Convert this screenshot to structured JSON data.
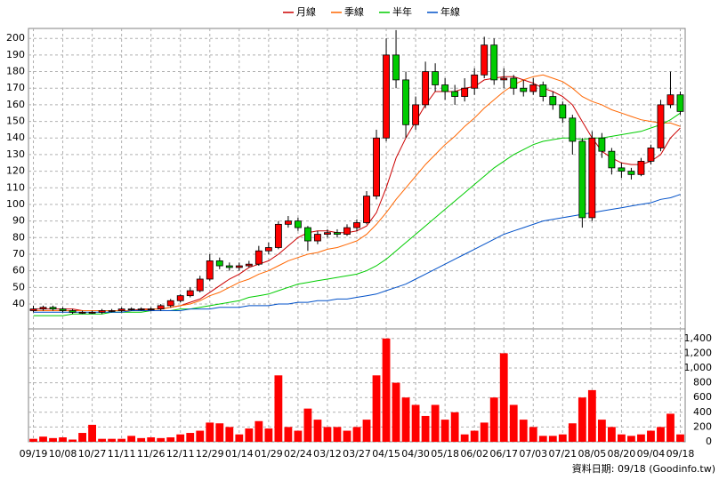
{
  "chart_data": {
    "type": "candlestick",
    "categories": [
      "09/19",
      null,
      null,
      "10/08",
      null,
      null,
      "10/27",
      null,
      null,
      "11/11",
      null,
      null,
      "11/26",
      null,
      null,
      "12/11",
      null,
      null,
      "12/29",
      null,
      null,
      "01/14",
      null,
      null,
      "01/29",
      null,
      null,
      "02/24",
      null,
      null,
      "03/12",
      null,
      null,
      "03/27",
      null,
      null,
      "04/15",
      null,
      null,
      "04/30",
      null,
      null,
      "05/18",
      null,
      null,
      "06/02",
      null,
      null,
      "06/17",
      null,
      null,
      "07/03",
      null,
      null,
      "07/21",
      null,
      null,
      "08/05",
      null,
      null,
      "08/20",
      null,
      null,
      "09/04",
      null,
      null,
      "09/18"
    ],
    "open": [
      36,
      37,
      38,
      37,
      36,
      35,
      35,
      35,
      36,
      36,
      37,
      37,
      37,
      37,
      39,
      42,
      45,
      48,
      55,
      66,
      63,
      62,
      63,
      64,
      72,
      74,
      88,
      90,
      86,
      78,
      82,
      83,
      82,
      86,
      89,
      105,
      140,
      190,
      175,
      148,
      160,
      180,
      172,
      168,
      165,
      170,
      178,
      196,
      175,
      176,
      170,
      168,
      172,
      165,
      160,
      152,
      138,
      92,
      140,
      132,
      122,
      120,
      118,
      126,
      134,
      160,
      166
    ],
    "high": [
      39,
      39,
      39,
      38,
      37,
      36,
      36,
      37,
      37,
      38,
      38,
      38,
      38,
      40,
      43,
      46,
      50,
      57,
      70,
      68,
      65,
      65,
      66,
      75,
      77,
      90,
      93,
      92,
      87,
      84,
      85,
      85,
      88,
      91,
      108,
      145,
      200,
      205,
      180,
      165,
      186,
      185,
      176,
      172,
      176,
      182,
      201,
      200,
      182,
      178,
      175,
      176,
      174,
      168,
      162,
      154,
      140,
      144,
      143,
      134,
      125,
      122,
      128,
      136,
      163,
      180,
      168
    ],
    "low": [
      35,
      36,
      36,
      35,
      34,
      34,
      34,
      34,
      35,
      35,
      36,
      36,
      36,
      36,
      38,
      41,
      44,
      47,
      54,
      61,
      60,
      60,
      62,
      63,
      70,
      73,
      86,
      84,
      72,
      76,
      80,
      80,
      81,
      84,
      88,
      103,
      138,
      170,
      140,
      145,
      158,
      168,
      163,
      160,
      162,
      166,
      176,
      172,
      170,
      166,
      165,
      166,
      162,
      157,
      149,
      130,
      86,
      90,
      128,
      118,
      116,
      115,
      117,
      124,
      132,
      158,
      154
    ],
    "close": [
      37,
      38,
      37,
      36,
      35,
      35,
      35,
      36,
      36,
      37,
      37,
      37,
      37,
      39,
      42,
      45,
      48,
      55,
      66,
      63,
      62,
      63,
      64,
      72,
      74,
      88,
      90,
      86,
      78,
      82,
      83,
      82,
      86,
      89,
      105,
      140,
      190,
      175,
      148,
      160,
      180,
      172,
      168,
      165,
      170,
      178,
      196,
      175,
      176,
      170,
      168,
      172,
      165,
      160,
      152,
      138,
      92,
      140,
      132,
      122,
      120,
      118,
      126,
      134,
      160,
      166,
      156
    ],
    "up_color": "#ff0000",
    "down_color": "#00cc00",
    "series": [
      {
        "name": "月線",
        "color": "#cc0000",
        "values": [
          37,
          37,
          37,
          37,
          37,
          36,
          36,
          36,
          36,
          36,
          36,
          37,
          37,
          37,
          38,
          39,
          41,
          43,
          47,
          51,
          55,
          58,
          62,
          64,
          66,
          70,
          75,
          80,
          83,
          84,
          84,
          83,
          83,
          84,
          87,
          95,
          110,
          128,
          140,
          150,
          160,
          168,
          168,
          168,
          170,
          171,
          175,
          176,
          177,
          177,
          175,
          173,
          170,
          168,
          165,
          160,
          150,
          140,
          132,
          128,
          125,
          124,
          124,
          126,
          130,
          140,
          146
        ]
      },
      {
        "name": "季線",
        "color": "#ff6600",
        "values": [
          36,
          36,
          36,
          36,
          36,
          36,
          36,
          36,
          36,
          36,
          36,
          36,
          37,
          37,
          38,
          39,
          40,
          42,
          45,
          47,
          50,
          53,
          55,
          58,
          60,
          63,
          66,
          68,
          70,
          71,
          73,
          74,
          76,
          78,
          82,
          88,
          95,
          103,
          110,
          117,
          124,
          130,
          136,
          141,
          147,
          152,
          158,
          163,
          168,
          172,
          175,
          177,
          178,
          176,
          174,
          170,
          165,
          162,
          160,
          157,
          155,
          153,
          151,
          150,
          149,
          149,
          147
        ]
      },
      {
        "name": "半年",
        "color": "#00cc00",
        "values": [
          33,
          33,
          33,
          33,
          34,
          34,
          34,
          34,
          35,
          35,
          35,
          35,
          36,
          36,
          36,
          37,
          37,
          38,
          39,
          40,
          41,
          42,
          44,
          45,
          46,
          48,
          50,
          52,
          53,
          54,
          55,
          56,
          57,
          58,
          60,
          63,
          67,
          72,
          77,
          82,
          87,
          92,
          97,
          102,
          107,
          112,
          117,
          122,
          126,
          130,
          133,
          136,
          138,
          139,
          140,
          140,
          139,
          140,
          140,
          141,
          142,
          143,
          144,
          146,
          148,
          151,
          155
        ]
      },
      {
        "name": "年線",
        "color": "#0050c8",
        "values": [
          35,
          35,
          35,
          35,
          35,
          35,
          35,
          35,
          35,
          35,
          36,
          36,
          36,
          36,
          36,
          36,
          37,
          37,
          37,
          38,
          38,
          38,
          39,
          39,
          39,
          40,
          40,
          41,
          41,
          42,
          42,
          43,
          43,
          44,
          45,
          46,
          48,
          50,
          52,
          55,
          58,
          61,
          64,
          67,
          70,
          73,
          76,
          79,
          82,
          84,
          86,
          88,
          90,
          91,
          92,
          93,
          94,
          95,
          96,
          97,
          98,
          99,
          100,
          101,
          103,
          104,
          106
        ]
      }
    ],
    "ylim": [
      25,
      206
    ],
    "yticks": [
      40,
      50,
      60,
      70,
      80,
      90,
      100,
      110,
      120,
      130,
      140,
      150,
      160,
      170,
      180,
      190,
      200
    ],
    "grid": true,
    "volume": {
      "type": "bar",
      "color": "#ff0000",
      "values": [
        40,
        70,
        50,
        60,
        30,
        120,
        230,
        40,
        40,
        40,
        80,
        50,
        60,
        50,
        60,
        100,
        120,
        150,
        260,
        250,
        200,
        100,
        180,
        280,
        180,
        900,
        200,
        150,
        450,
        300,
        200,
        200,
        150,
        200,
        300,
        900,
        1400,
        800,
        600,
        500,
        350,
        500,
        300,
        400,
        100,
        150,
        260,
        600,
        1200,
        500,
        300,
        200,
        80,
        80,
        100,
        250,
        600,
        700,
        300,
        200,
        100,
        80,
        100,
        150,
        200,
        380,
        100
      ],
      "ylim": [
        0,
        1530
      ],
      "yticks": [
        0,
        200,
        400,
        600,
        800,
        {
          "value": 1000,
          "label": "1,000"
        },
        {
          "value": 1200,
          "label": "1,200"
        },
        {
          "value": 1400,
          "label": "1,400"
        }
      ]
    }
  },
  "footer": "資料日期: 09/18 (Goodinfo.tw)"
}
